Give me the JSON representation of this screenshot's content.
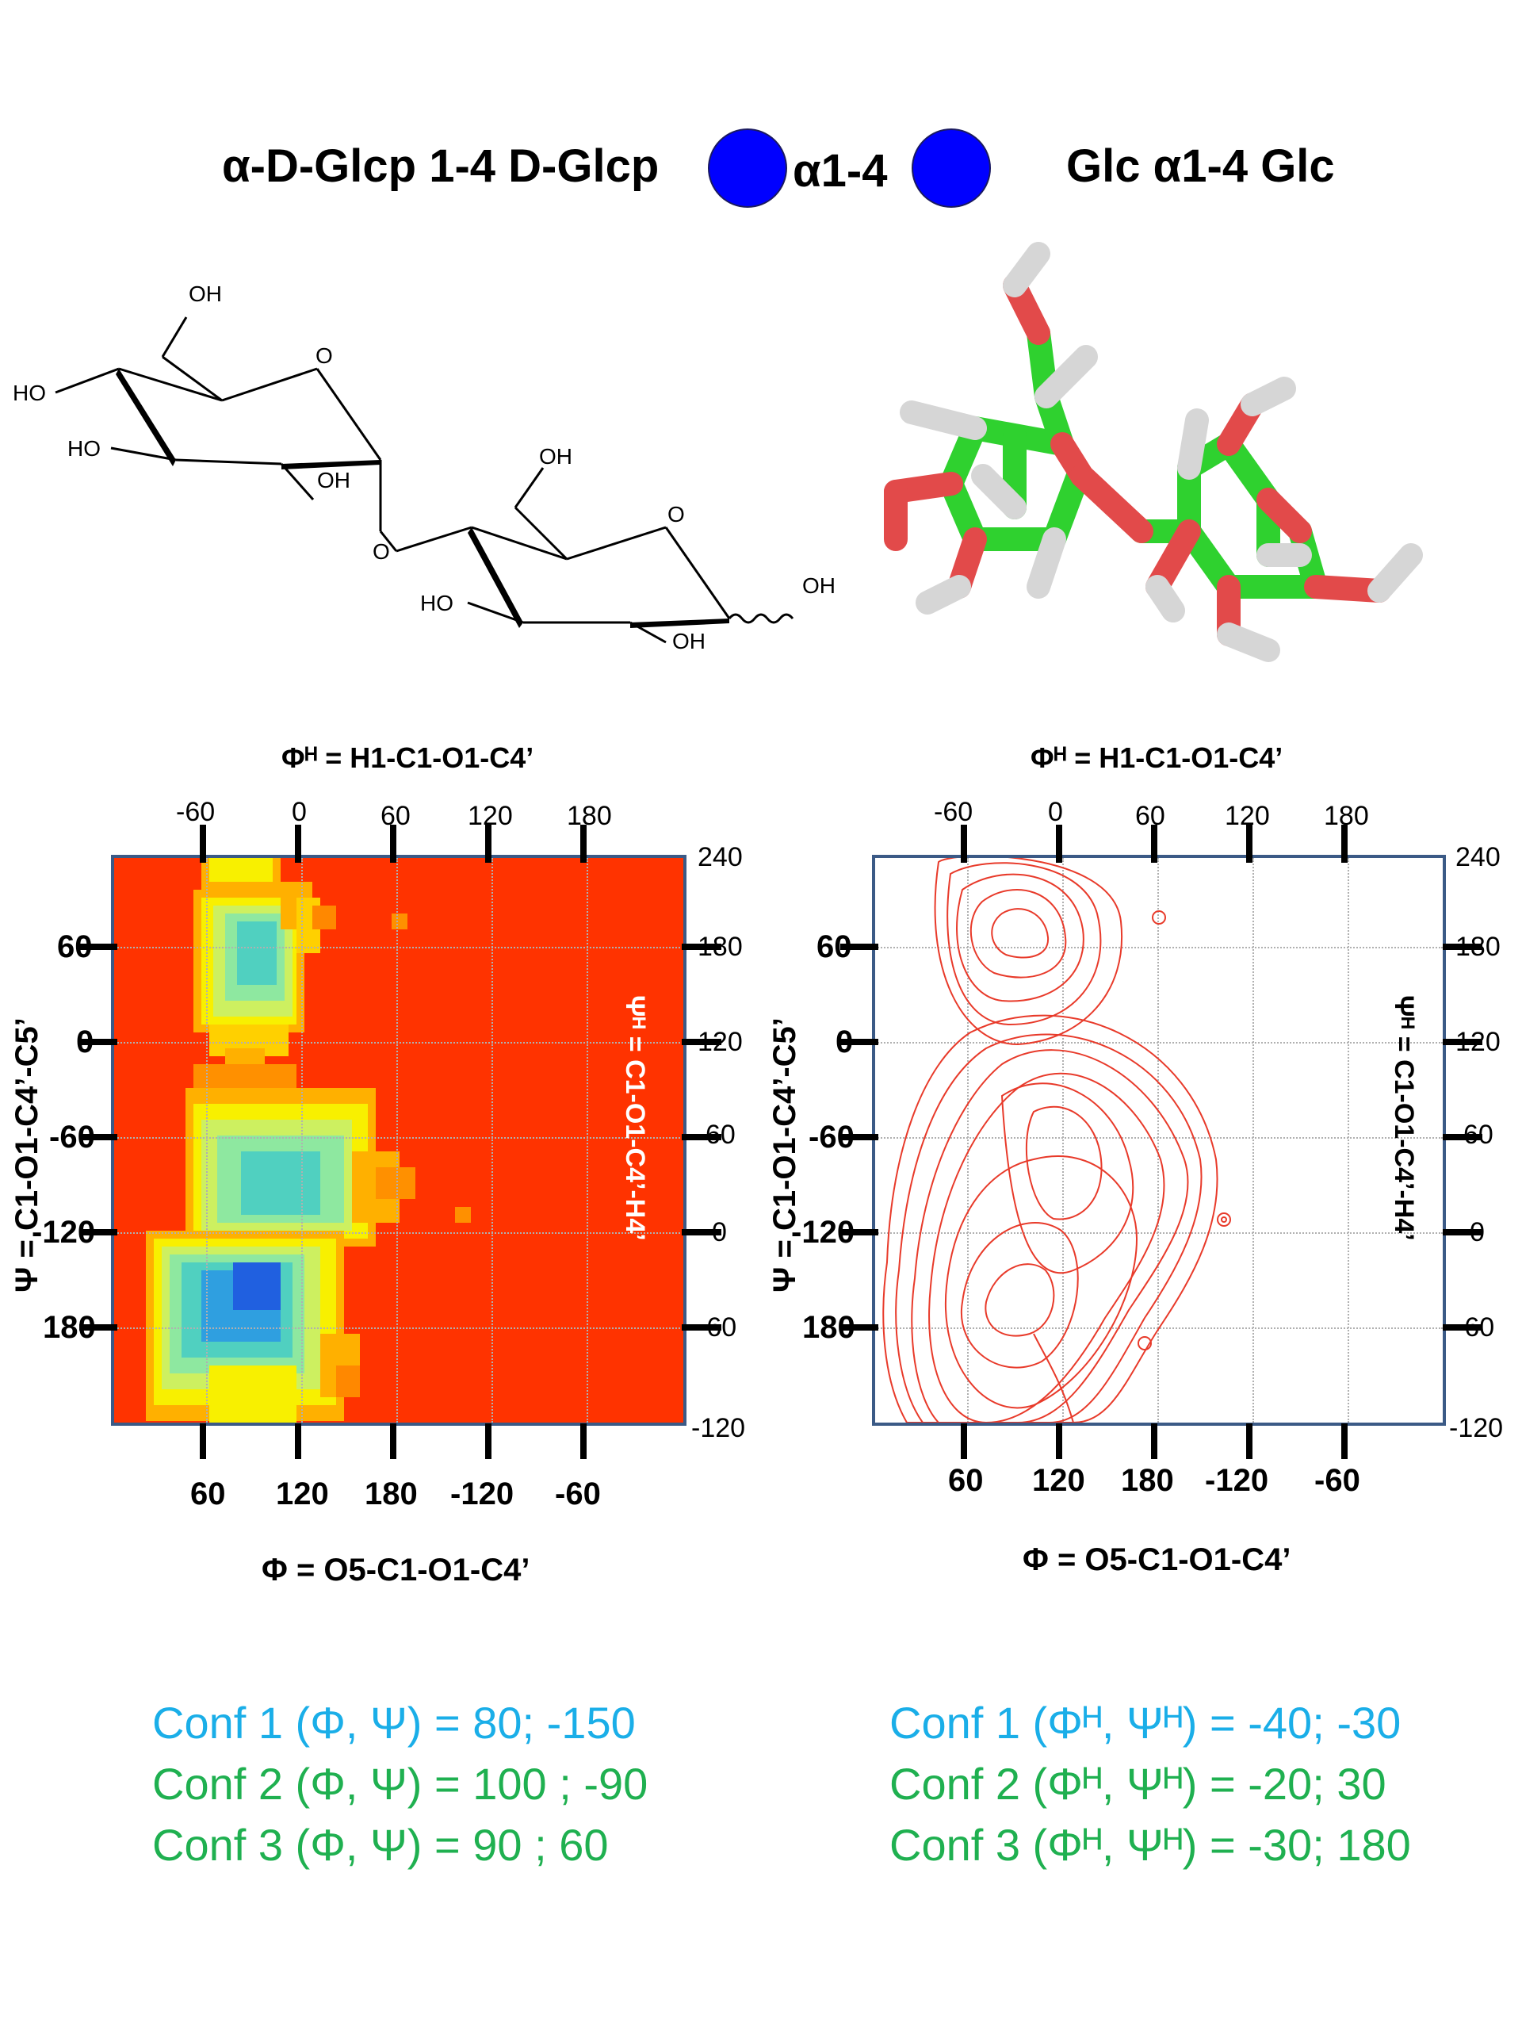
{
  "header": {
    "iupac_name": "α-D-Glcp 1-4 D-Glcp",
    "linkage_label": "α1-4",
    "short_name": "Glc α1-4 Glc",
    "symbol_color": "#0000ff"
  },
  "structure_2d_labels": {
    "oh_top": "OH",
    "ho_left": "HO",
    "ho_mid": "HO",
    "oh_ring1": "OH",
    "ring_o1": "O",
    "link_o": "O",
    "oh_top2": "OH",
    "ring_o2": "O",
    "ho_ring2": "HO",
    "oh_ring2": "OH",
    "oh_anomeric": "OH"
  },
  "left_plot": {
    "top_title": "Φᴴ = H1-C1-O1-C4’",
    "bottom_title": "Φ = O5-C1-O1-C4’",
    "left_title": "Ψ = C1-O1-C4’-C5’",
    "right_title": "Ψᴴ = C1-O1-C4’-H4’",
    "top_ticks": [
      "-60",
      "0",
      "60",
      "120",
      "180"
    ],
    "bottom_ticks": [
      "60",
      "120",
      "180",
      "-120",
      "-60"
    ],
    "left_ticks": [
      "60",
      "0",
      "-60",
      "-120",
      "180"
    ],
    "right_ticks": [
      "240",
      "180",
      "120",
      "60",
      "0",
      "-60",
      "-120"
    ],
    "background_color": "#ff3300"
  },
  "right_plot": {
    "top_title": "Φᴴ = H1-C1-O1-C4’",
    "bottom_title": "Φ = O5-C1-O1-C4’",
    "left_title": "Ψ = C1-O1-C4’-C5’",
    "right_title": "Ψᴴ = C1-O1-C4’-H4’",
    "top_ticks": [
      "-60",
      "0",
      "60",
      "120",
      "180"
    ],
    "bottom_ticks": [
      "60",
      "120",
      "180",
      "-120",
      "-60"
    ],
    "left_ticks": [
      "60",
      "0",
      "-60",
      "-120",
      "180"
    ],
    "right_ticks": [
      "240",
      "180",
      "120",
      "60",
      "0",
      "-60",
      "-120"
    ],
    "contour_color": "#e83a2a"
  },
  "conformers_left": [
    {
      "text": "Conf 1 (Φ, Ψ) =    80; -150",
      "color": "#1aaee8"
    },
    {
      "text": "Conf 2 (Φ, Ψ) =  100 ; -90",
      "color": "#1fb050"
    },
    {
      "text": "Conf 3 (Φ, Ψ) =   90 ;  60",
      "color": "#1fb050"
    }
  ],
  "conformers_right": [
    {
      "text": "Conf 1 (Φᴴ, Ψᴴ) = -40; -30",
      "color": "#1aaee8"
    },
    {
      "text": "Conf 2 (Φᴴ, Ψᴴ) = -20; 30",
      "color": "#1fb050"
    },
    {
      "text": "Conf 3 (Φᴴ, Ψᴴ) = -30; 180",
      "color": "#1fb050"
    }
  ]
}
